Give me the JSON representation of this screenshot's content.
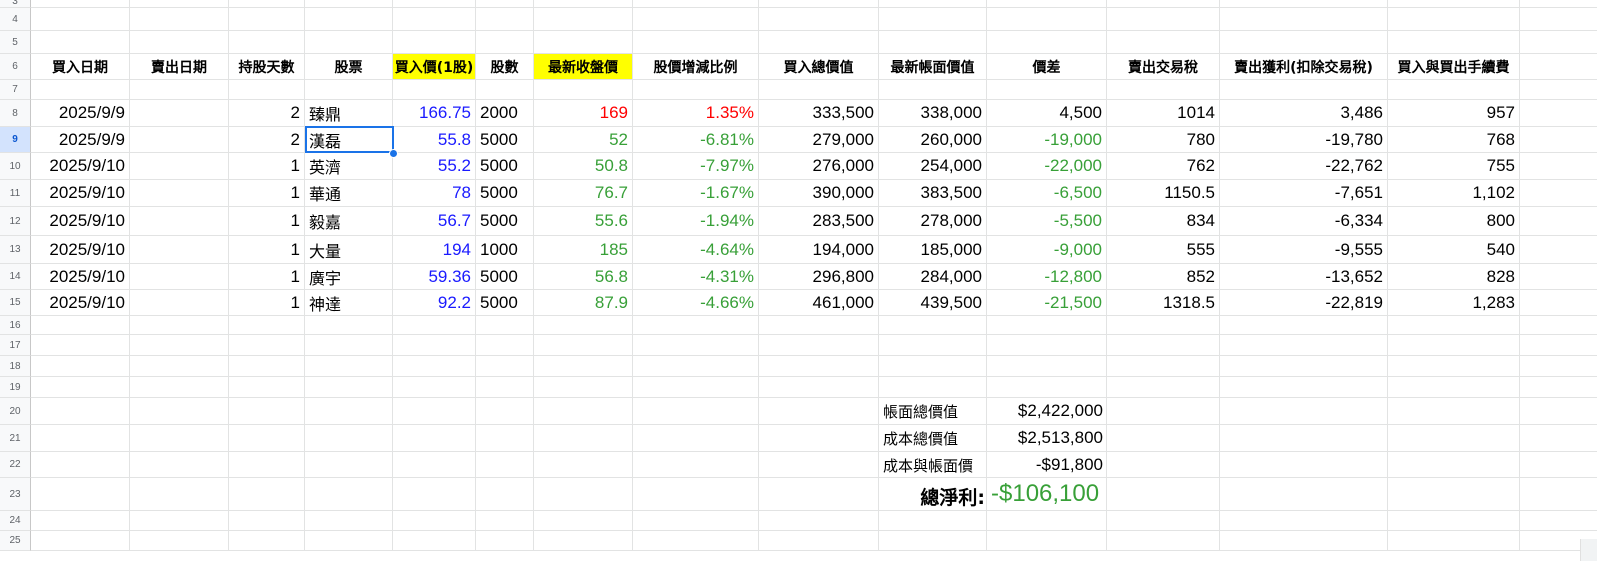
{
  "row_numbers": [
    "3",
    "4",
    "5",
    "6",
    "7",
    "8",
    "9",
    "10",
    "11",
    "12",
    "13",
    "14",
    "15",
    "16",
    "17",
    "18",
    "19",
    "20",
    "21",
    "22",
    "23",
    "24",
    "25"
  ],
  "selected_row": "9",
  "headers": [
    "買入日期",
    "賣出日期",
    "持股天數",
    "股票",
    "買入價(1股)",
    "股數",
    "最新收盤價",
    "股價增減比例",
    "買入總價值",
    "最新帳面價值",
    "價差",
    "賣出交易稅",
    "賣出獲利(扣除交易稅)",
    "買入與買出手續費"
  ],
  "highlight_color": "#ffff00",
  "rows": [
    {
      "buy_date": "2025/9/9",
      "sell_date": "",
      "days": "2",
      "stock": "臻鼎",
      "buy_price": "166.75",
      "shares": "2000",
      "last_close": "169",
      "change_pct": "1.35%",
      "buy_total": "333,500",
      "book_value": "338,000",
      "diff": "4,500",
      "tax": "1014",
      "profit": "3,486",
      "fee": "957",
      "trend": "up"
    },
    {
      "buy_date": "2025/9/9",
      "sell_date": "",
      "days": "2",
      "stock": "漢磊",
      "buy_price": "55.8",
      "shares": "5000",
      "last_close": "52",
      "change_pct": "-6.81%",
      "buy_total": "279,000",
      "book_value": "260,000",
      "diff": "-19,000",
      "tax": "780",
      "profit": "-19,780",
      "fee": "768",
      "trend": "down"
    },
    {
      "buy_date": "2025/9/10",
      "sell_date": "",
      "days": "1",
      "stock": "英濟",
      "buy_price": "55.2",
      "shares": "5000",
      "last_close": "50.8",
      "change_pct": "-7.97%",
      "buy_total": "276,000",
      "book_value": "254,000",
      "diff": "-22,000",
      "tax": "762",
      "profit": "-22,762",
      "fee": "755",
      "trend": "down"
    },
    {
      "buy_date": "2025/9/10",
      "sell_date": "",
      "days": "1",
      "stock": "華通",
      "buy_price": "78",
      "shares": "5000",
      "last_close": "76.7",
      "change_pct": "-1.67%",
      "buy_total": "390,000",
      "book_value": "383,500",
      "diff": "-6,500",
      "tax": "1150.5",
      "profit": "-7,651",
      "fee": "1,102",
      "trend": "down"
    },
    {
      "buy_date": "2025/9/10",
      "sell_date": "",
      "days": "1",
      "stock": "毅嘉",
      "buy_price": "56.7",
      "shares": "5000",
      "last_close": "55.6",
      "change_pct": "-1.94%",
      "buy_total": "283,500",
      "book_value": "278,000",
      "diff": "-5,500",
      "tax": "834",
      "profit": "-6,334",
      "fee": "800",
      "trend": "down"
    },
    {
      "buy_date": "2025/9/10",
      "sell_date": "",
      "days": "1",
      "stock": "大量",
      "buy_price": "194",
      "shares": "1000",
      "last_close": "185",
      "change_pct": "-4.64%",
      "buy_total": "194,000",
      "book_value": "185,000",
      "diff": "-9,000",
      "tax": "555",
      "profit": "-9,555",
      "fee": "540",
      "trend": "down"
    },
    {
      "buy_date": "2025/9/10",
      "sell_date": "",
      "days": "1",
      "stock": "廣宇",
      "buy_price": "59.36",
      "shares": "5000",
      "last_close": "56.8",
      "change_pct": "-4.31%",
      "buy_total": "296,800",
      "book_value": "284,000",
      "diff": "-12,800",
      "tax": "852",
      "profit": "-13,652",
      "fee": "828",
      "trend": "down"
    },
    {
      "buy_date": "2025/9/10",
      "sell_date": "",
      "days": "1",
      "stock": "神達",
      "buy_price": "92.2",
      "shares": "5000",
      "last_close": "87.9",
      "change_pct": "-4.66%",
      "buy_total": "461,000",
      "book_value": "439,500",
      "diff": "-21,500",
      "tax": "1318.5",
      "profit": "-22,819",
      "fee": "1,283",
      "trend": "down"
    }
  ],
  "summary": {
    "book_total_label": "帳面總價值",
    "book_total_value": "$2,422,000",
    "cost_total_label": "成本總價值",
    "cost_total_value": "$2,513,800",
    "diff_label": "成本與帳面價",
    "diff_value": "-$91,800",
    "net_label": "總淨利:",
    "net_value": "-$106,100"
  },
  "colors": {
    "buy_price": "#1a1aff",
    "up": "#ff0000",
    "down": "#38a038",
    "selection": "#1a73e8"
  }
}
